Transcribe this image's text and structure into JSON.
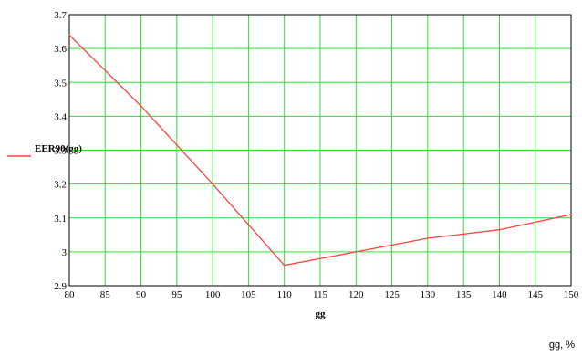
{
  "chart_data": {
    "type": "line",
    "ylabel": "EER90(gg)",
    "xlabel": "gg",
    "x": [
      80,
      90,
      100,
      110,
      120,
      130,
      140,
      150
    ],
    "series": [
      {
        "values": [
          3.64,
          3.43,
          3.2,
          2.96,
          3.0,
          3.04,
          3.065,
          3.11
        ],
        "color": "#ff4040"
      }
    ],
    "xlim": [
      80,
      150
    ],
    "ylim": [
      2.9,
      3.7
    ],
    "xticks": [
      "80",
      "85",
      "90",
      "95",
      "100",
      "105",
      "110",
      "115",
      "120",
      "125",
      "130",
      "135",
      "140",
      "145",
      "150"
    ],
    "yticks": [
      "2.9",
      "3",
      "3.1",
      "3.2",
      "3.3",
      "3.4",
      "3.5",
      "3.6",
      "3.7"
    ],
    "grid": true,
    "grid_color": "#33dd33"
  },
  "caption": "gg, %"
}
